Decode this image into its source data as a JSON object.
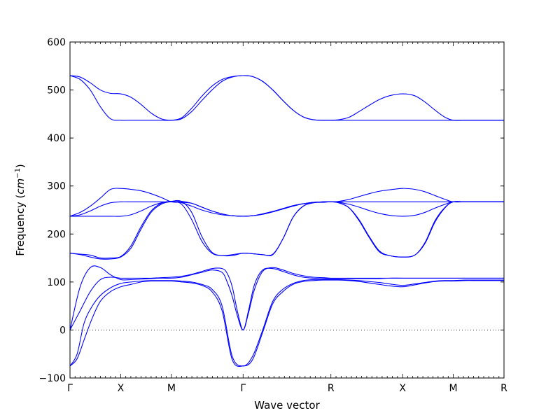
{
  "chart_data": {
    "type": "line",
    "title": "",
    "xlabel": "Wave vector",
    "ylabel": "Frequency",
    "ylabel_unit_base": "cm",
    "ylabel_unit_exp": "−1",
    "ylim": [
      -100,
      600
    ],
    "yticks": [
      -100,
      0,
      100,
      200,
      300,
      400,
      500,
      600
    ],
    "grid": false,
    "zero_line": "dotted",
    "color": "#0000ff",
    "x_points": [
      {
        "label": "Γ",
        "x": 0.0
      },
      {
        "label": "X",
        "x": 0.5
      },
      {
        "label": "M",
        "x": 1.0
      },
      {
        "label": "Γ",
        "x": 1.707
      },
      {
        "label": "R",
        "x": 2.573
      },
      {
        "label": "X",
        "x": 3.28
      },
      {
        "label": "M",
        "x": 3.78
      },
      {
        "label": "R",
        "x": 4.28
      }
    ],
    "series": [
      {
        "x": [
          0.0,
          0.07,
          0.14,
          0.22,
          0.3,
          0.4,
          0.5,
          0.6,
          0.7,
          0.8,
          0.9,
          1.0,
          1.1,
          1.2,
          1.3,
          1.4,
          1.5,
          1.6,
          1.707,
          1.8,
          1.9,
          2.0,
          2.1,
          2.2,
          2.3,
          2.4,
          2.5,
          2.573,
          2.65,
          2.75,
          2.85,
          2.95,
          3.05,
          3.15,
          3.28,
          3.4,
          3.5,
          3.6,
          3.7,
          3.78,
          3.9,
          4.0,
          4.1,
          4.2,
          4.28
        ],
        "y": [
          -75,
          -60,
          -20,
          25,
          60,
          80,
          90,
          95,
          100,
          102,
          102,
          102,
          100,
          98,
          93,
          80,
          40,
          -62,
          -75,
          -62,
          -5,
          55,
          80,
          95,
          101,
          103,
          104,
          104,
          104,
          103,
          101,
          98,
          95,
          92,
          90,
          94,
          98,
          101,
          102,
          102,
          103,
          103,
          103,
          103,
          103
        ]
      },
      {
        "x": [
          0.0,
          0.07,
          0.14,
          0.22,
          0.3,
          0.4,
          0.5,
          0.6,
          0.7,
          0.8,
          0.9,
          1.0,
          1.1,
          1.2,
          1.3,
          1.4,
          1.5,
          1.6,
          1.707,
          1.8,
          1.9,
          2.0,
          2.1,
          2.2,
          2.3,
          2.4,
          2.5,
          2.573,
          2.65,
          2.75,
          2.85,
          2.95,
          3.05,
          3.15,
          3.28,
          3.4,
          3.5,
          3.6,
          3.7,
          3.78,
          3.9,
          4.0,
          4.1,
          4.2,
          4.28
        ],
        "y": [
          -75,
          -50,
          15,
          50,
          72,
          88,
          97,
          100,
          102,
          103,
          103,
          103,
          102,
          100,
          95,
          85,
          50,
          -55,
          -75,
          -55,
          0,
          60,
          85,
          97,
          103,
          105,
          105,
          105,
          105,
          104,
          103,
          101,
          99,
          96,
          93,
          96,
          99,
          102,
          103,
          103,
          104,
          104,
          104,
          104,
          104
        ]
      },
      {
        "x": [
          0.0,
          0.1,
          0.2,
          0.3,
          0.4,
          0.5,
          0.6,
          0.7,
          0.8,
          0.9,
          1.0,
          1.1,
          1.2,
          1.3,
          1.4,
          1.5,
          1.55,
          1.6,
          1.65,
          1.707,
          1.76,
          1.82,
          1.9,
          2.0,
          2.1,
          2.2,
          2.3,
          2.4,
          2.5,
          2.573,
          2.65,
          2.75,
          2.85,
          2.95,
          3.05,
          3.15,
          3.28,
          3.4,
          3.5,
          3.6,
          3.7,
          3.78,
          3.9,
          4.0,
          4.1,
          4.2,
          4.28
        ],
        "y": [
          0,
          40,
          80,
          105,
          110,
          108,
          108,
          108,
          108,
          109,
          110,
          112,
          116,
          122,
          128,
          128,
          118,
          90,
          40,
          0,
          40,
          95,
          125,
          128,
          122,
          115,
          110,
          108,
          107,
          107,
          107,
          107,
          107,
          107,
          107,
          108,
          108,
          108,
          108,
          108,
          108,
          108,
          108,
          108,
          108,
          108,
          108
        ]
      },
      {
        "x": [
          0.0,
          0.1,
          0.2,
          0.3,
          0.4,
          0.5,
          0.6,
          0.7,
          0.8,
          0.9,
          1.0,
          1.1,
          1.2,
          1.3,
          1.4,
          1.5,
          1.55,
          1.6,
          1.65,
          1.707,
          1.76,
          1.82,
          1.9,
          2.0,
          2.1,
          2.2,
          2.3,
          2.4,
          2.5,
          2.573,
          2.65,
          2.75,
          2.85,
          2.95,
          3.05,
          3.15,
          3.28,
          3.4,
          3.5,
          3.6,
          3.7,
          3.78,
          3.9,
          4.0,
          4.1,
          4.2,
          4.28
        ],
        "y": [
          0,
          90,
          130,
          130,
          115,
          105,
          105,
          106,
          107,
          108,
          108,
          110,
          115,
          120,
          125,
          120,
          100,
          70,
          30,
          0,
          35,
          85,
          122,
          130,
          125,
          118,
          113,
          110,
          109,
          108,
          108,
          108,
          108,
          108,
          108,
          108,
          108,
          108,
          108,
          108,
          108,
          108,
          108,
          108,
          108,
          108,
          108
        ]
      },
      {
        "x": [
          0.0,
          0.1,
          0.2,
          0.3,
          0.4,
          0.5,
          0.6,
          0.7,
          0.8,
          0.9,
          1.0,
          1.1,
          1.2,
          1.3,
          1.4,
          1.5,
          1.6,
          1.707,
          1.8,
          1.9,
          2.0,
          2.1,
          2.2,
          2.3,
          2.4,
          2.5,
          2.573,
          2.65,
          2.75,
          2.85,
          2.95,
          3.05,
          3.15,
          3.28,
          3.4,
          3.5,
          3.6,
          3.7,
          3.78,
          3.9,
          4.0,
          4.1,
          4.2,
          4.28
        ],
        "y": [
          160,
          157,
          152,
          148,
          148,
          152,
          170,
          210,
          245,
          262,
          267,
          262,
          230,
          185,
          160,
          155,
          157,
          160,
          159,
          157,
          158,
          190,
          235,
          258,
          265,
          267,
          267,
          265,
          255,
          230,
          195,
          165,
          155,
          152,
          156,
          180,
          225,
          255,
          267,
          267,
          267,
          267,
          267,
          267
        ]
      },
      {
        "x": [
          0.0,
          0.1,
          0.2,
          0.3,
          0.4,
          0.5,
          0.6,
          0.7,
          0.8,
          0.9,
          1.0,
          1.1,
          1.2,
          1.3,
          1.4,
          1.5,
          1.6,
          1.707,
          1.8,
          1.9,
          2.0,
          2.1,
          2.2,
          2.3,
          2.4,
          2.5,
          2.573,
          2.65,
          2.75,
          2.85,
          2.95,
          3.05,
          3.15,
          3.28,
          3.4,
          3.5,
          3.6,
          3.7,
          3.78,
          3.9,
          4.0,
          4.1,
          4.2,
          4.28
        ],
        "y": [
          160,
          158,
          156,
          150,
          150,
          153,
          175,
          215,
          248,
          264,
          268,
          268,
          245,
          195,
          162,
          155,
          155,
          160,
          159,
          157,
          157,
          190,
          235,
          258,
          265,
          266,
          267,
          265,
          255,
          228,
          193,
          163,
          155,
          152,
          156,
          182,
          228,
          256,
          267,
          267,
          267,
          267,
          267,
          267
        ]
      },
      {
        "x": [
          0.0,
          0.1,
          0.2,
          0.3,
          0.4,
          0.5,
          0.6,
          0.7,
          0.8,
          0.9,
          1.0,
          1.1,
          1.2,
          1.3,
          1.4,
          1.5,
          1.6,
          1.707,
          1.8,
          1.9,
          2.0,
          2.1,
          2.2,
          2.3,
          2.4,
          2.5,
          2.573,
          2.65,
          2.75,
          2.85,
          2.95,
          3.05,
          3.15,
          3.28,
          3.4,
          3.5,
          3.6,
          3.7,
          3.78,
          3.9,
          4.0,
          4.1,
          4.2,
          4.28
        ],
        "y": [
          237,
          237,
          237,
          237,
          237,
          237,
          240,
          248,
          258,
          265,
          268,
          265,
          258,
          250,
          244,
          240,
          238,
          237,
          238,
          241,
          246,
          252,
          258,
          263,
          266,
          267,
          267,
          268,
          272,
          278,
          284,
          289,
          292,
          295,
          293,
          288,
          280,
          272,
          267,
          267,
          267,
          267,
          267,
          267
        ]
      },
      {
        "x": [
          0.0,
          0.1,
          0.2,
          0.3,
          0.4,
          0.5,
          0.6,
          0.7,
          0.8,
          0.9,
          1.0,
          1.1,
          1.2,
          1.3,
          1.4,
          1.5,
          1.6,
          1.707,
          1.8,
          1.9,
          2.0,
          2.1,
          2.2,
          2.3,
          2.4,
          2.5,
          2.573,
          2.65,
          2.75,
          2.85,
          2.95,
          3.05,
          3.15,
          3.28,
          3.4,
          3.5,
          3.6,
          3.7,
          3.78,
          3.9,
          4.0,
          4.1,
          4.2,
          4.28
        ],
        "y": [
          237,
          240,
          248,
          258,
          265,
          267,
          267,
          267,
          267,
          267,
          267,
          268,
          264,
          256,
          248,
          242,
          238,
          237,
          238,
          242,
          247,
          253,
          259,
          263,
          266,
          267,
          267,
          266,
          262,
          256,
          249,
          243,
          239,
          237,
          239,
          245,
          254,
          262,
          267,
          267,
          267,
          267,
          267,
          267
        ]
      },
      {
        "x": [
          0.0,
          0.1,
          0.2,
          0.3,
          0.4,
          0.5,
          0.6,
          0.7,
          0.8,
          0.9,
          1.0,
          1.1,
          1.2,
          1.3,
          1.4,
          1.5,
          1.6,
          1.707,
          1.8,
          1.9,
          2.0,
          2.1,
          2.2,
          2.3,
          2.4,
          2.5,
          2.573,
          2.65,
          2.75,
          2.85,
          2.95,
          3.05,
          3.15,
          3.28,
          3.4,
          3.5,
          3.6,
          3.7,
          3.78,
          3.9,
          4.0,
          4.1,
          4.2,
          4.28
        ],
        "y": [
          237,
          245,
          258,
          275,
          293,
          295,
          293,
          290,
          284,
          276,
          267,
          266,
          264,
          256,
          248,
          242,
          238,
          237,
          238,
          242,
          247,
          253,
          259,
          263,
          266,
          267,
          267,
          267,
          267,
          267,
          267,
          267,
          267,
          267,
          267,
          267,
          267,
          267,
          267,
          267,
          267,
          267,
          267,
          267
        ]
      },
      {
        "x": [
          0.0,
          0.1,
          0.2,
          0.3,
          0.4,
          0.5,
          0.6,
          0.7,
          0.8,
          0.9,
          1.0,
          1.1,
          1.2,
          1.3,
          1.4,
          1.5,
          1.6,
          1.707,
          1.8,
          1.9,
          2.0,
          2.1,
          2.2,
          2.3,
          2.4,
          2.5,
          2.573,
          2.65,
          2.75,
          2.85,
          2.95,
          3.05,
          3.15,
          3.28,
          3.4,
          3.5,
          3.6,
          3.7,
          3.78,
          3.9,
          4.0,
          4.1,
          4.2,
          4.28
        ],
        "y": [
          530,
          527,
          515,
          500,
          493,
          492,
          485,
          470,
          452,
          440,
          437,
          440,
          455,
          478,
          500,
          518,
          527,
          530,
          528,
          518,
          500,
          478,
          458,
          444,
          438,
          437,
          437,
          438,
          443,
          455,
          468,
          480,
          488,
          492,
          488,
          475,
          458,
          443,
          437,
          437,
          437,
          437,
          437,
          437
        ]
      },
      {
        "x": [
          0.0,
          0.1,
          0.2,
          0.3,
          0.4,
          0.5,
          0.6,
          0.7,
          0.8,
          0.9,
          1.0,
          1.1,
          1.2,
          1.3,
          1.4,
          1.5,
          1.6,
          1.707,
          1.8,
          1.9,
          2.0,
          2.1,
          2.2,
          2.3,
          2.4,
          2.5,
          2.573,
          2.65,
          2.75,
          2.85,
          2.95,
          3.05,
          3.15,
          3.28,
          3.4,
          3.5,
          3.6,
          3.7,
          3.78,
          3.9,
          4.0,
          4.1,
          4.2,
          4.28
        ],
        "y": [
          530,
          522,
          500,
          465,
          440,
          437,
          437,
          437,
          437,
          437,
          437,
          442,
          462,
          487,
          508,
          522,
          528,
          530,
          528,
          518,
          500,
          478,
          458,
          444,
          438,
          437,
          437,
          437,
          437,
          437,
          437,
          437,
          437,
          437,
          437,
          437,
          437,
          437,
          437,
          437,
          437,
          437,
          437,
          437
        ]
      }
    ]
  }
}
